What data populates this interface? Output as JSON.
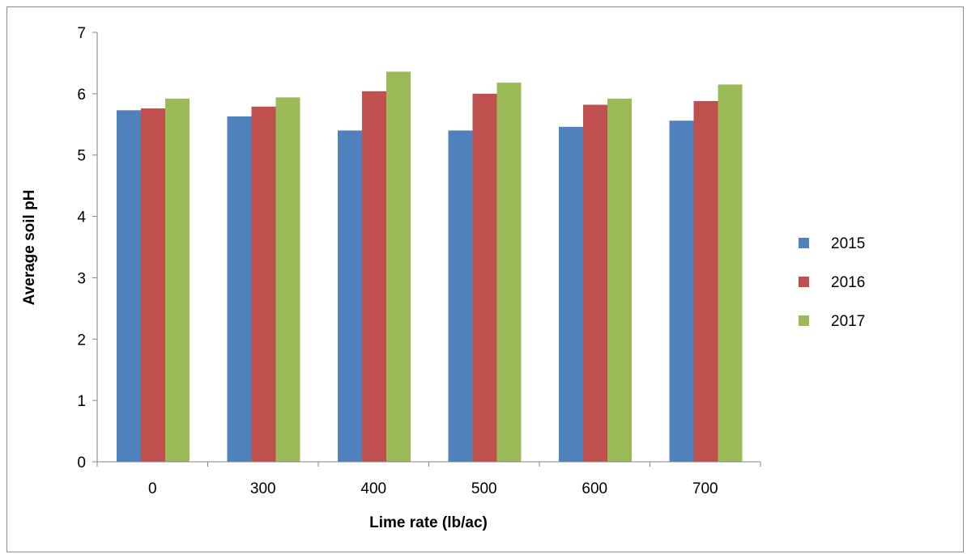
{
  "chart_data": {
    "type": "bar",
    "title": "",
    "xlabel": "Lime rate (lb/ac)",
    "ylabel": "Average soil pH",
    "categories": [
      "0",
      "300",
      "400",
      "500",
      "600",
      "700"
    ],
    "ylim": [
      0,
      7
    ],
    "yticks": [
      "0",
      "1",
      "2",
      "3",
      "4",
      "5",
      "6",
      "7"
    ],
    "grid": false,
    "legend_position": "right",
    "series": [
      {
        "name": "2015",
        "color": "#4F81BD",
        "values": [
          5.73,
          5.63,
          5.4,
          5.4,
          5.46,
          5.56
        ]
      },
      {
        "name": "2016",
        "color": "#C0504D",
        "values": [
          5.76,
          5.79,
          6.04,
          6.0,
          5.82,
          5.88
        ]
      },
      {
        "name": "2017",
        "color": "#9BBB59",
        "values": [
          5.92,
          5.94,
          6.36,
          6.18,
          5.92,
          6.15
        ]
      }
    ]
  }
}
